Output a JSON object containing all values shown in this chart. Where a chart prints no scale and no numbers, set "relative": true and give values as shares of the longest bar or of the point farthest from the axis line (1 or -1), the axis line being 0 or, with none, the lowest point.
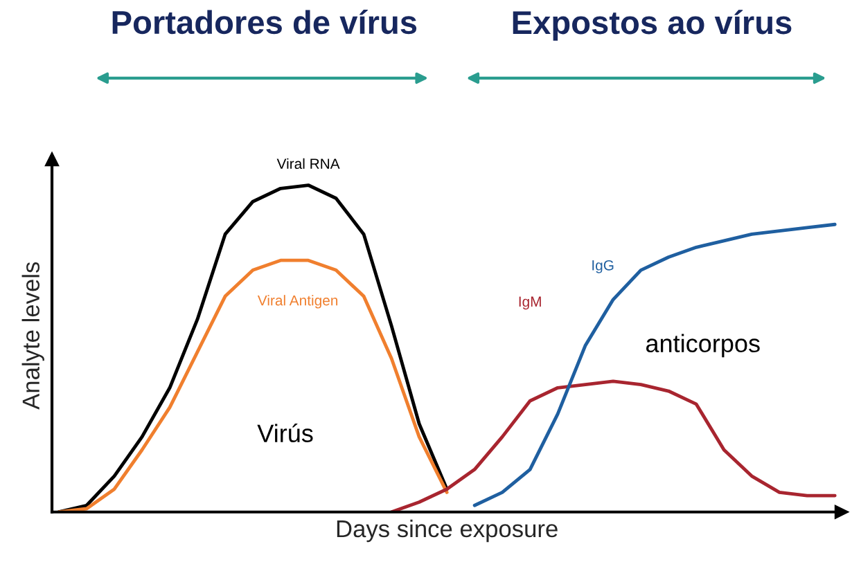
{
  "chart_data": {
    "type": "line",
    "relative": true,
    "xlabel": "Days since exposure",
    "ylabel": "Analyte levels",
    "grid": false,
    "legend": false,
    "marker": "none",
    "line_style": "solid",
    "categories": [
      null,
      null,
      null,
      null,
      null,
      null,
      null,
      null,
      null,
      null,
      null,
      null,
      null,
      null,
      null,
      null,
      null,
      null,
      null,
      null,
      null,
      null,
      null,
      null,
      null,
      null,
      null,
      null,
      null
    ],
    "series": [
      {
        "name": "Viral RNA",
        "color": "#000000",
        "values": [
          0,
          0.02,
          0.11,
          0.23,
          0.38,
          0.59,
          0.85,
          0.95,
          0.99,
          1.0,
          0.96,
          0.85,
          0.57,
          0.27,
          0.07,
          null,
          null,
          null,
          null,
          null,
          null,
          null,
          null,
          null,
          null,
          null,
          null,
          null,
          null
        ]
      },
      {
        "name": "Viral Antigen",
        "color": "#f07f2e",
        "values": [
          0,
          0.01,
          0.07,
          0.19,
          0.32,
          0.49,
          0.66,
          0.74,
          0.77,
          0.77,
          0.74,
          0.66,
          0.47,
          0.23,
          0.06,
          null,
          null,
          null,
          null,
          null,
          null,
          null,
          null,
          null,
          null,
          null,
          null,
          null,
          null
        ]
      },
      {
        "name": "IgM",
        "color": "#a8252f",
        "values": [
          null,
          null,
          null,
          null,
          null,
          null,
          null,
          null,
          null,
          null,
          null,
          null,
          0,
          0.03,
          0.07,
          0.13,
          0.23,
          0.34,
          0.38,
          0.39,
          0.4,
          0.39,
          0.37,
          0.33,
          0.19,
          0.11,
          0.06,
          0.05,
          0.05
        ]
      },
      {
        "name": "IgG",
        "color": "#1f5fa0",
        "values": [
          null,
          null,
          null,
          null,
          null,
          null,
          null,
          null,
          null,
          null,
          null,
          null,
          null,
          null,
          null,
          0.02,
          0.06,
          0.13,
          0.3,
          0.51,
          0.65,
          0.74,
          0.78,
          0.81,
          0.83,
          0.85,
          0.86,
          0.87,
          0.88
        ]
      }
    ],
    "annotations": [
      "Portadores de vírus",
      "Expostos ao vírus",
      "Virús",
      "anticorpos"
    ]
  }
}
